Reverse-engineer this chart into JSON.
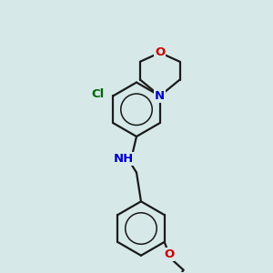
{
  "bg_color": "#d6e8e8",
  "bond_color": "#1a1a1a",
  "N_color": "#0000cc",
  "O_color": "#cc0000",
  "Cl_color": "#006600",
  "lw": 1.6,
  "fs": 9.5,
  "r_benz": 0.3,
  "figsize": [
    3.0,
    3.0
  ],
  "dpi": 100,
  "xlim": [
    -0.15,
    1.25
  ],
  "ylim": [
    -0.15,
    2.85
  ]
}
